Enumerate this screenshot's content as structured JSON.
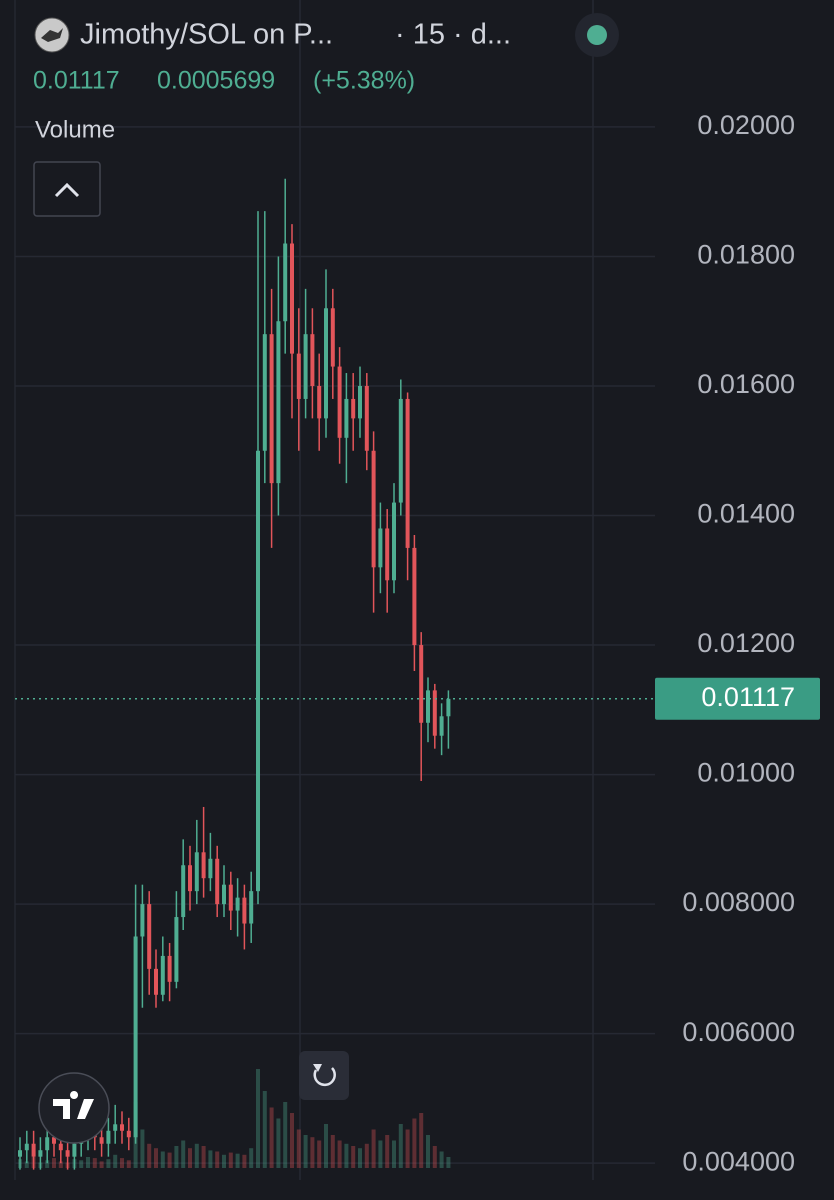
{
  "chart_data": {
    "type": "candlestick",
    "title": "Jimothy/SOL on P...",
    "interval": "· 15 · d...",
    "last_price": 0.01117,
    "change": 0.0005699,
    "change_pct": "(+5.38%)",
    "volume_label": "Volume",
    "up_color": "#4fae92",
    "down_color": "#e2555a",
    "ylim": [
      0.00374,
      0.02196
    ],
    "yticks": [
      {
        "value": 0.02,
        "label": "0.02000"
      },
      {
        "value": 0.018,
        "label": "0.01800"
      },
      {
        "value": 0.016,
        "label": "0.01600"
      },
      {
        "value": 0.014,
        "label": "0.01400"
      },
      {
        "value": 0.012,
        "label": "0.01200"
      },
      {
        "value": 0.01,
        "label": "0.01000"
      },
      {
        "value": 0.008,
        "label": "0.008000"
      },
      {
        "value": 0.006,
        "label": "0.006000"
      },
      {
        "value": 0.004,
        "label": "0.004000"
      }
    ],
    "grid": true,
    "open": [
      0.0041,
      0.0042,
      0.0043,
      0.0041,
      0.0042,
      0.0044,
      0.0043,
      0.0042,
      0.0041,
      0.0043,
      0.0044,
      0.0045,
      0.0044,
      0.0043,
      0.0045,
      0.0046,
      0.0045,
      0.0044,
      0.0075,
      0.008,
      0.007,
      0.0066,
      0.0072,
      0.0068,
      0.0078,
      0.0086,
      0.0082,
      0.0088,
      0.0084,
      0.0087,
      0.008,
      0.0083,
      0.0079,
      0.0081,
      0.0077,
      0.0082,
      0.015,
      0.0168,
      0.0145,
      0.017,
      0.0182,
      0.0165,
      0.0158,
      0.0168,
      0.016,
      0.0155,
      0.0172,
      0.0163,
      0.0152,
      0.0158,
      0.0155,
      0.016,
      0.015,
      0.0132,
      0.0138,
      0.013,
      0.0142,
      0.0158,
      0.0135,
      0.012,
      0.0108,
      0.0113,
      0.0106,
      0.0109
    ],
    "high": [
      0.0044,
      0.0045,
      0.0045,
      0.0044,
      0.0046,
      0.0046,
      0.0045,
      0.0044,
      0.0045,
      0.0046,
      0.0047,
      0.0048,
      0.0046,
      0.0047,
      0.0049,
      0.0048,
      0.0047,
      0.0083,
      0.0083,
      0.0082,
      0.0073,
      0.0075,
      0.0074,
      0.0082,
      0.009,
      0.0089,
      0.0093,
      0.0095,
      0.0091,
      0.0089,
      0.0086,
      0.0085,
      0.0084,
      0.0083,
      0.0085,
      0.0187,
      0.0187,
      0.0175,
      0.018,
      0.0192,
      0.0185,
      0.0172,
      0.0175,
      0.0172,
      0.0165,
      0.0178,
      0.0175,
      0.0166,
      0.0162,
      0.0162,
      0.0163,
      0.0162,
      0.0153,
      0.0142,
      0.0141,
      0.0145,
      0.0161,
      0.0159,
      0.0137,
      0.0122,
      0.0115,
      0.0114,
      0.0111,
      0.0113
    ],
    "low": [
      0.0039,
      0.004,
      0.0039,
      0.0039,
      0.004,
      0.0041,
      0.004,
      0.0039,
      0.0039,
      0.0041,
      0.0042,
      0.0042,
      0.0041,
      0.0041,
      0.0043,
      0.0043,
      0.0042,
      0.0043,
      0.0064,
      0.0066,
      0.0064,
      0.0065,
      0.0065,
      0.0067,
      0.0076,
      0.0079,
      0.008,
      0.0081,
      0.0082,
      0.0078,
      0.0078,
      0.0076,
      0.0075,
      0.0073,
      0.0074,
      0.008,
      0.0145,
      0.0135,
      0.014,
      0.0165,
      0.0155,
      0.015,
      0.0155,
      0.0155,
      0.015,
      0.0152,
      0.0158,
      0.0148,
      0.0145,
      0.015,
      0.0152,
      0.0147,
      0.0125,
      0.0128,
      0.0125,
      0.0128,
      0.014,
      0.013,
      0.0116,
      0.0099,
      0.0105,
      0.0104,
      0.0103,
      0.0104
    ],
    "close": [
      0.0042,
      0.0043,
      0.0041,
      0.0042,
      0.0044,
      0.0043,
      0.0042,
      0.0041,
      0.0043,
      0.0044,
      0.0045,
      0.0044,
      0.0043,
      0.0045,
      0.0046,
      0.0045,
      0.0044,
      0.0075,
      0.008,
      0.007,
      0.0066,
      0.0072,
      0.0068,
      0.0078,
      0.0086,
      0.0082,
      0.0088,
      0.0084,
      0.0087,
      0.008,
      0.0083,
      0.0079,
      0.0081,
      0.0077,
      0.0082,
      0.015,
      0.0168,
      0.0145,
      0.017,
      0.0182,
      0.0165,
      0.0158,
      0.0168,
      0.016,
      0.0155,
      0.0172,
      0.0163,
      0.0152,
      0.0158,
      0.0155,
      0.016,
      0.015,
      0.0132,
      0.0138,
      0.013,
      0.0142,
      0.0158,
      0.0135,
      0.012,
      0.0108,
      0.0113,
      0.0106,
      0.0109,
      0.01117
    ],
    "volume": [
      8,
      6,
      10,
      5,
      7,
      9,
      6,
      5,
      8,
      7,
      10,
      9,
      6,
      8,
      12,
      9,
      7,
      60,
      35,
      22,
      18,
      15,
      14,
      20,
      25,
      18,
      22,
      20,
      16,
      15,
      12,
      14,
      13,
      12,
      18,
      90,
      70,
      55,
      45,
      60,
      50,
      35,
      30,
      28,
      25,
      40,
      30,
      25,
      22,
      20,
      18,
      22,
      35,
      25,
      30,
      25,
      40,
      35,
      45,
      50,
      30,
      20,
      15,
      10
    ]
  }
}
